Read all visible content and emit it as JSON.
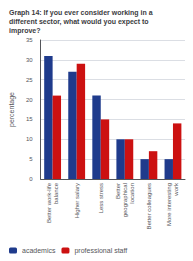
{
  "chart_data": {
    "type": "bar",
    "title": "Graph 14: If you ever consider working in a\ndifferent sector, what would you expect to\nimprove?",
    "categories": [
      "Better work-life\nbalance",
      "Higher salary",
      "Less stress",
      "Better\ngeographical\nlocation",
      "Better colleagues",
      "More interesting\nwork"
    ],
    "series": [
      {
        "name": "academics",
        "color": "#1f3b8c",
        "values": [
          31,
          27,
          21,
          10,
          5,
          5
        ]
      },
      {
        "name": "professional staff",
        "color": "#cc1111",
        "values": [
          21,
          29,
          15,
          10,
          7,
          14
        ]
      }
    ],
    "ylabel": "percentage",
    "ylim": [
      0,
      35
    ],
    "yticks": [
      0,
      5,
      10,
      15,
      20,
      25,
      30,
      35
    ],
    "grid": true,
    "legend": "lower left"
  }
}
